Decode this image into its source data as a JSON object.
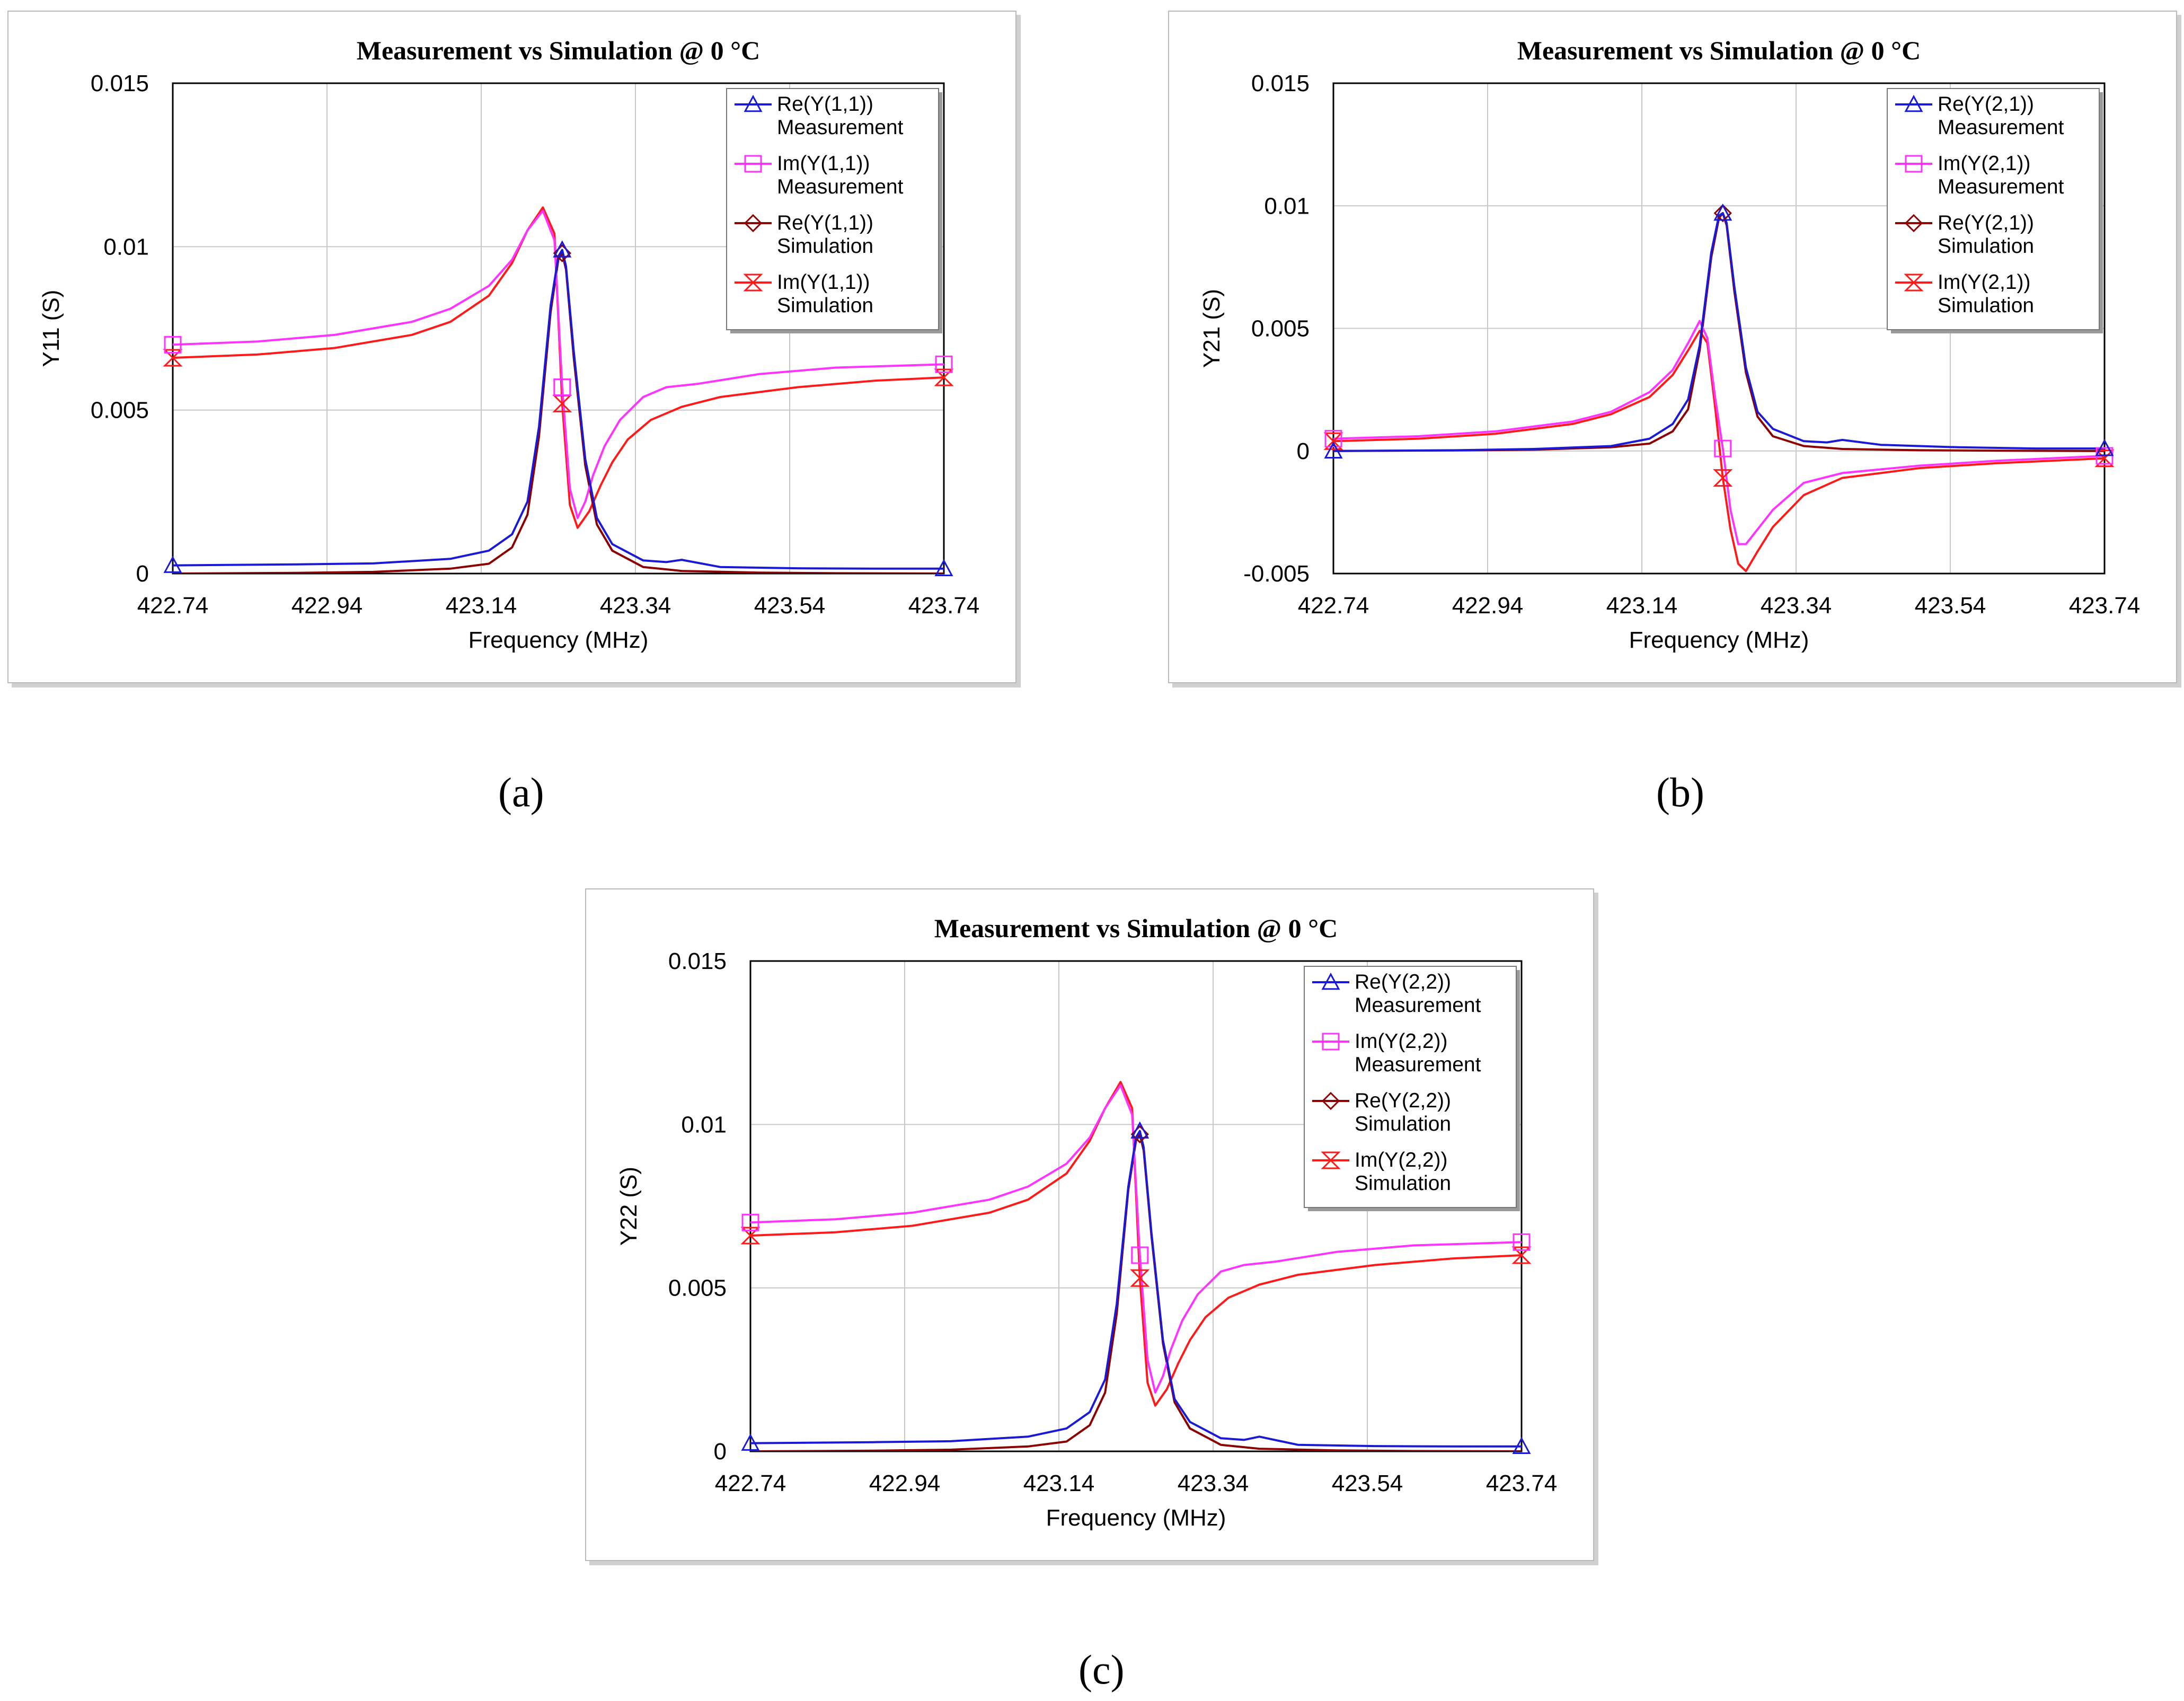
{
  "captions": [
    "(a)",
    "(b)",
    "(c)"
  ],
  "colors": {
    "re_measurement": "#1a1ad6",
    "im_measurement": "#ff33ff",
    "re_simulation": "#8b0000",
    "im_simulation": "#ff1a1a",
    "grid": "#c8c8c8"
  },
  "chart_data": [
    {
      "type": "line",
      "title": "Measurement vs Simulation @ 0 °C",
      "xlabel": "Frequency (MHz)",
      "ylabel": "Y11 (S)",
      "xlim": [
        422.74,
        423.74
      ],
      "ylim": [
        0,
        0.015
      ],
      "xticks": [
        "422.74",
        "422.94",
        "423.14",
        "423.34",
        "423.54",
        "423.74"
      ],
      "yticks": [
        "0",
        "0.005",
        "0.01",
        "0.015"
      ],
      "grid": true,
      "legend_position": "top-right",
      "series": [
        {
          "name": "Re(Y(1,1))",
          "name2": "Measurement",
          "marker": "triangle",
          "color": "#1a1ad6",
          "x": [
            422.74,
            422.9,
            423.0,
            423.1,
            423.15,
            423.18,
            423.2,
            423.215,
            423.23,
            423.24,
            423.245,
            423.25,
            423.26,
            423.275,
            423.29,
            423.31,
            423.35,
            423.38,
            423.4,
            423.45,
            423.55,
            423.65,
            423.74
          ],
          "y": [
            0.00025,
            0.00028,
            0.00031,
            0.00045,
            0.0007,
            0.0012,
            0.0022,
            0.0045,
            0.0082,
            0.0097,
            0.0099,
            0.0094,
            0.0068,
            0.0035,
            0.0017,
            0.0009,
            0.0004,
            0.00035,
            0.00042,
            0.0002,
            0.00016,
            0.00015,
            0.00015
          ],
          "marker_x": [
            422.74,
            423.245,
            423.74
          ]
        },
        {
          "name": "Im(Y(1,1))",
          "name2": "Measurement",
          "marker": "square",
          "color": "#ff33ff",
          "x": [
            422.74,
            422.85,
            422.95,
            423.05,
            423.1,
            423.15,
            423.18,
            423.2,
            423.22,
            423.235,
            423.245,
            423.255,
            423.265,
            423.275,
            423.285,
            423.3,
            423.32,
            423.35,
            423.38,
            423.42,
            423.5,
            423.6,
            423.74
          ],
          "y": [
            0.007,
            0.0071,
            0.0073,
            0.0077,
            0.0081,
            0.0088,
            0.0096,
            0.0105,
            0.0111,
            0.0102,
            0.0057,
            0.0026,
            0.0017,
            0.0022,
            0.003,
            0.0039,
            0.0047,
            0.0054,
            0.0057,
            0.0058,
            0.0061,
            0.0063,
            0.0064
          ],
          "marker_x": [
            422.74,
            423.245,
            423.74
          ]
        },
        {
          "name": "Re(Y(1,1))",
          "name2": "Simulation",
          "marker": "diamond",
          "color": "#8b0000",
          "x": [
            422.74,
            422.9,
            423.0,
            423.1,
            423.15,
            423.18,
            423.2,
            423.215,
            423.23,
            423.24,
            423.245,
            423.25,
            423.26,
            423.275,
            423.29,
            423.31,
            423.35,
            423.4,
            423.5,
            423.6,
            423.74
          ],
          "y": [
            0.0,
            2e-05,
            5e-05,
            0.00015,
            0.0003,
            0.0008,
            0.0018,
            0.0042,
            0.008,
            0.0096,
            0.0098,
            0.0093,
            0.0066,
            0.0033,
            0.0015,
            0.0007,
            0.0002,
            8e-05,
            3e-05,
            1e-05,
            0.0
          ],
          "marker_x": [
            423.245
          ]
        },
        {
          "name": "Im(Y(1,1))",
          "name2": "Simulation",
          "marker": "hourglass",
          "color": "#ff1a1a",
          "x": [
            422.74,
            422.85,
            422.95,
            423.05,
            423.1,
            423.15,
            423.18,
            423.2,
            423.22,
            423.235,
            423.245,
            423.255,
            423.265,
            423.28,
            423.295,
            423.31,
            423.33,
            423.36,
            423.4,
            423.45,
            423.55,
            423.65,
            423.74
          ],
          "y": [
            0.0066,
            0.0067,
            0.0069,
            0.0073,
            0.0077,
            0.0085,
            0.0095,
            0.0105,
            0.0112,
            0.0104,
            0.0052,
            0.0021,
            0.0014,
            0.0019,
            0.0027,
            0.0034,
            0.0041,
            0.0047,
            0.0051,
            0.0054,
            0.0057,
            0.0059,
            0.006
          ],
          "marker_x": [
            422.74,
            423.245,
            423.74
          ]
        }
      ]
    },
    {
      "type": "line",
      "title": "Measurement vs Simulation @ 0 °C",
      "xlabel": "Frequency (MHz)",
      "ylabel": "Y21 (S)",
      "xlim": [
        422.74,
        423.74
      ],
      "ylim": [
        -0.005,
        0.015
      ],
      "xticks": [
        "422.74",
        "422.94",
        "423.14",
        "423.34",
        "423.54",
        "423.74"
      ],
      "yticks": [
        "-0.005",
        "0",
        "0.005",
        "0.01",
        "0.015"
      ],
      "grid": true,
      "legend_position": "top-right",
      "series": [
        {
          "name": "Re(Y(2,1))",
          "name2": "Measurement",
          "marker": "triangle",
          "color": "#1a1ad6",
          "x": [
            422.74,
            422.9,
            423.0,
            423.1,
            423.15,
            423.18,
            423.2,
            423.215,
            423.23,
            423.24,
            423.245,
            423.25,
            423.26,
            423.275,
            423.29,
            423.31,
            423.35,
            423.38,
            423.4,
            423.45,
            423.55,
            423.65,
            423.74
          ],
          "y": [
            0.0,
            3e-05,
            8e-05,
            0.0002,
            0.0005,
            0.0011,
            0.0021,
            0.0043,
            0.0081,
            0.0096,
            0.0097,
            0.0093,
            0.0067,
            0.0034,
            0.0016,
            0.0009,
            0.0004,
            0.00035,
            0.00045,
            0.00025,
            0.00015,
            0.0001,
            0.0001
          ],
          "marker_x": [
            422.74,
            423.245,
            423.74
          ]
        },
        {
          "name": "Im(Y(2,1))",
          "name2": "Measurement",
          "marker": "square",
          "color": "#ff33ff",
          "x": [
            422.74,
            422.85,
            422.95,
            423.05,
            423.1,
            423.15,
            423.18,
            423.2,
            423.215,
            423.225,
            423.235,
            423.245,
            423.255,
            423.265,
            423.275,
            423.29,
            423.31,
            423.35,
            423.4,
            423.5,
            423.6,
            423.74
          ],
          "y": [
            0.0005,
            0.0006,
            0.0008,
            0.0012,
            0.0016,
            0.0024,
            0.0033,
            0.0044,
            0.0053,
            0.0046,
            0.0022,
            0.0001,
            -0.0024,
            -0.0038,
            -0.0038,
            -0.0032,
            -0.0024,
            -0.0013,
            -0.0009,
            -0.0006,
            -0.0004,
            -0.0002
          ],
          "marker_x": [
            422.74,
            423.245,
            423.74
          ]
        },
        {
          "name": "Re(Y(2,1))",
          "name2": "Simulation",
          "marker": "diamond",
          "color": "#8b0000",
          "x": [
            422.74,
            422.9,
            423.0,
            423.1,
            423.15,
            423.18,
            423.2,
            423.215,
            423.23,
            423.24,
            423.245,
            423.25,
            423.26,
            423.275,
            423.29,
            423.31,
            423.35,
            423.4,
            423.5,
            423.6,
            423.74
          ],
          "y": [
            0.0,
            2e-05,
            5e-05,
            0.00015,
            0.0003,
            0.0008,
            0.0017,
            0.0041,
            0.0079,
            0.0095,
            0.0097,
            0.0092,
            0.0065,
            0.0032,
            0.0014,
            0.0006,
            0.0002,
            8e-05,
            3e-05,
            1e-05,
            0.0
          ],
          "marker_x": [
            423.245
          ]
        },
        {
          "name": "Im(Y(2,1))",
          "name2": "Simulation",
          "marker": "hourglass",
          "color": "#ff1a1a",
          "x": [
            422.74,
            422.85,
            422.95,
            423.05,
            423.1,
            423.15,
            423.18,
            423.2,
            423.215,
            423.225,
            423.235,
            423.245,
            423.255,
            423.265,
            423.275,
            423.29,
            423.31,
            423.35,
            423.4,
            423.5,
            423.6,
            423.74
          ],
          "y": [
            0.0004,
            0.0005,
            0.0007,
            0.0011,
            0.0015,
            0.0022,
            0.0031,
            0.0041,
            0.0049,
            0.0044,
            0.0018,
            -0.0011,
            -0.0032,
            -0.0046,
            -0.0049,
            -0.0041,
            -0.0031,
            -0.0018,
            -0.0011,
            -0.0007,
            -0.0005,
            -0.0003
          ],
          "marker_x": [
            422.74,
            423.245,
            423.74
          ]
        }
      ]
    },
    {
      "type": "line",
      "title": "Measurement vs Simulation @ 0 °C",
      "xlabel": "Frequency (MHz)",
      "ylabel": "Y22 (S)",
      "xlim": [
        422.74,
        423.74
      ],
      "ylim": [
        0,
        0.015
      ],
      "xticks": [
        "422.74",
        "422.94",
        "423.14",
        "423.34",
        "423.54",
        "423.74"
      ],
      "yticks": [
        "0",
        "0.005",
        "0.01",
        "0.015"
      ],
      "grid": true,
      "legend_position": "top-right",
      "series": [
        {
          "name": "Re(Y(2,2))",
          "name2": "Measurement",
          "marker": "triangle",
          "color": "#1a1ad6",
          "x": [
            422.74,
            422.9,
            423.0,
            423.1,
            423.15,
            423.18,
            423.2,
            423.215,
            423.23,
            423.24,
            423.245,
            423.25,
            423.26,
            423.275,
            423.29,
            423.31,
            423.35,
            423.38,
            423.4,
            423.45,
            423.55,
            423.65,
            423.74
          ],
          "y": [
            0.00025,
            0.00028,
            0.00031,
            0.00045,
            0.0007,
            0.0012,
            0.0022,
            0.0045,
            0.0081,
            0.0096,
            0.0098,
            0.0093,
            0.0067,
            0.0034,
            0.0016,
            0.0009,
            0.0004,
            0.00035,
            0.00045,
            0.0002,
            0.00016,
            0.00015,
            0.00015
          ],
          "marker_x": [
            422.74,
            423.245,
            423.74
          ]
        },
        {
          "name": "Im(Y(2,2))",
          "name2": "Measurement",
          "marker": "square",
          "color": "#ff33ff",
          "x": [
            422.74,
            422.85,
            422.95,
            423.05,
            423.1,
            423.15,
            423.18,
            423.2,
            423.22,
            423.235,
            423.245,
            423.255,
            423.265,
            423.275,
            423.285,
            423.3,
            423.32,
            423.35,
            423.38,
            423.42,
            423.5,
            423.6,
            423.74
          ],
          "y": [
            0.007,
            0.0071,
            0.0073,
            0.0077,
            0.0081,
            0.0088,
            0.0096,
            0.0105,
            0.0112,
            0.0103,
            0.006,
            0.0028,
            0.0018,
            0.0023,
            0.0031,
            0.004,
            0.0048,
            0.0055,
            0.0057,
            0.0058,
            0.0061,
            0.0063,
            0.0064
          ],
          "marker_x": [
            422.74,
            423.245,
            423.74
          ]
        },
        {
          "name": "Re(Y(2,2))",
          "name2": "Simulation",
          "marker": "diamond",
          "color": "#8b0000",
          "x": [
            422.74,
            422.9,
            423.0,
            423.1,
            423.15,
            423.18,
            423.2,
            423.215,
            423.23,
            423.24,
            423.245,
            423.25,
            423.26,
            423.275,
            423.29,
            423.31,
            423.35,
            423.4,
            423.5,
            423.6,
            423.74
          ],
          "y": [
            0.0,
            2e-05,
            5e-05,
            0.00015,
            0.0003,
            0.0008,
            0.0018,
            0.0042,
            0.008,
            0.0095,
            0.0097,
            0.0092,
            0.0066,
            0.0033,
            0.0015,
            0.0007,
            0.0002,
            8e-05,
            3e-05,
            1e-05,
            0.0
          ],
          "marker_x": [
            423.245
          ]
        },
        {
          "name": "Im(Y(2,2))",
          "name2": "Simulation",
          "marker": "hourglass",
          "color": "#ff1a1a",
          "x": [
            422.74,
            422.85,
            422.95,
            423.05,
            423.1,
            423.15,
            423.18,
            423.2,
            423.22,
            423.235,
            423.245,
            423.255,
            423.265,
            423.28,
            423.295,
            423.31,
            423.33,
            423.36,
            423.4,
            423.45,
            423.55,
            423.65,
            423.74
          ],
          "y": [
            0.0066,
            0.0067,
            0.0069,
            0.0073,
            0.0077,
            0.0085,
            0.0095,
            0.0105,
            0.0113,
            0.0105,
            0.0053,
            0.0021,
            0.0014,
            0.0019,
            0.0027,
            0.0034,
            0.0041,
            0.0047,
            0.0051,
            0.0054,
            0.0057,
            0.0059,
            0.006
          ],
          "marker_x": [
            422.74,
            423.245,
            423.74
          ]
        }
      ]
    }
  ]
}
